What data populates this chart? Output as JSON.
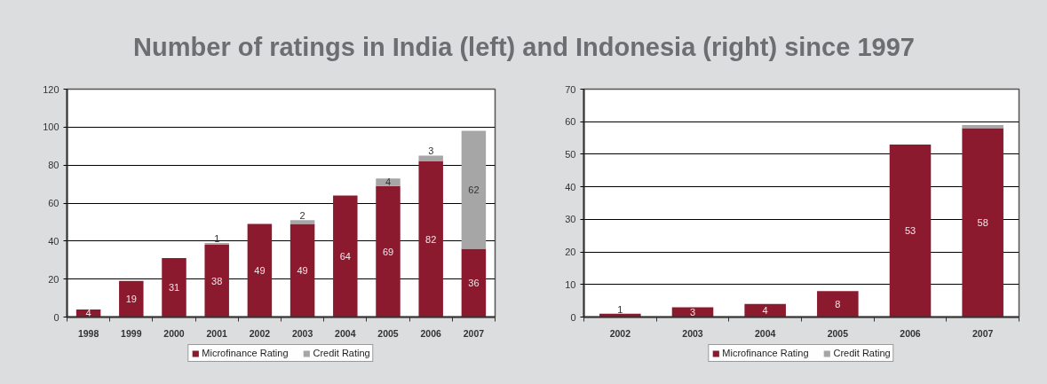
{
  "chart_data": [
    {
      "type": "bar",
      "title": "Number of ratings in India (left) and Indonesia (right) since 1997",
      "categories": [
        "1998",
        "1999",
        "2000",
        "2001",
        "2002",
        "2003",
        "2004",
        "2005",
        "2006",
        "2007"
      ],
      "series": [
        {
          "name": "Microfinance Rating",
          "color": "#8b1a2f",
          "values": [
            4,
            19,
            31,
            38,
            49,
            49,
            64,
            69,
            82,
            36
          ]
        },
        {
          "name": "Credit Rating",
          "color": "#a6a6a6",
          "values": [
            null,
            null,
            null,
            1,
            null,
            2,
            null,
            4,
            3,
            62
          ]
        }
      ],
      "stacked": true,
      "ylim": [
        0,
        120
      ],
      "yticks": [
        0,
        20,
        40,
        60,
        80,
        100,
        120
      ],
      "grid": "y",
      "legend": "bottom",
      "data_labels": true
    },
    {
      "type": "bar",
      "categories": [
        "2002",
        "2003",
        "2004",
        "2005",
        "2006",
        "2007"
      ],
      "series": [
        {
          "name": "Microfinance Rating",
          "color": "#8b1a2f",
          "values": [
            1,
            3,
            4,
            8,
            53,
            58
          ],
          "value_labels": [
            "1",
            "3",
            "4",
            "8",
            "53",
            "58"
          ]
        },
        {
          "name": "Credit Rating",
          "color": "#a6a6a6",
          "values": [
            null,
            null,
            null,
            null,
            null,
            1
          ]
        }
      ],
      "stacked": true,
      "ylim": [
        0,
        70
      ],
      "yticks": [
        0,
        10,
        20,
        30,
        40,
        50,
        60,
        70
      ],
      "grid": "y",
      "legend": "bottom"
    }
  ]
}
